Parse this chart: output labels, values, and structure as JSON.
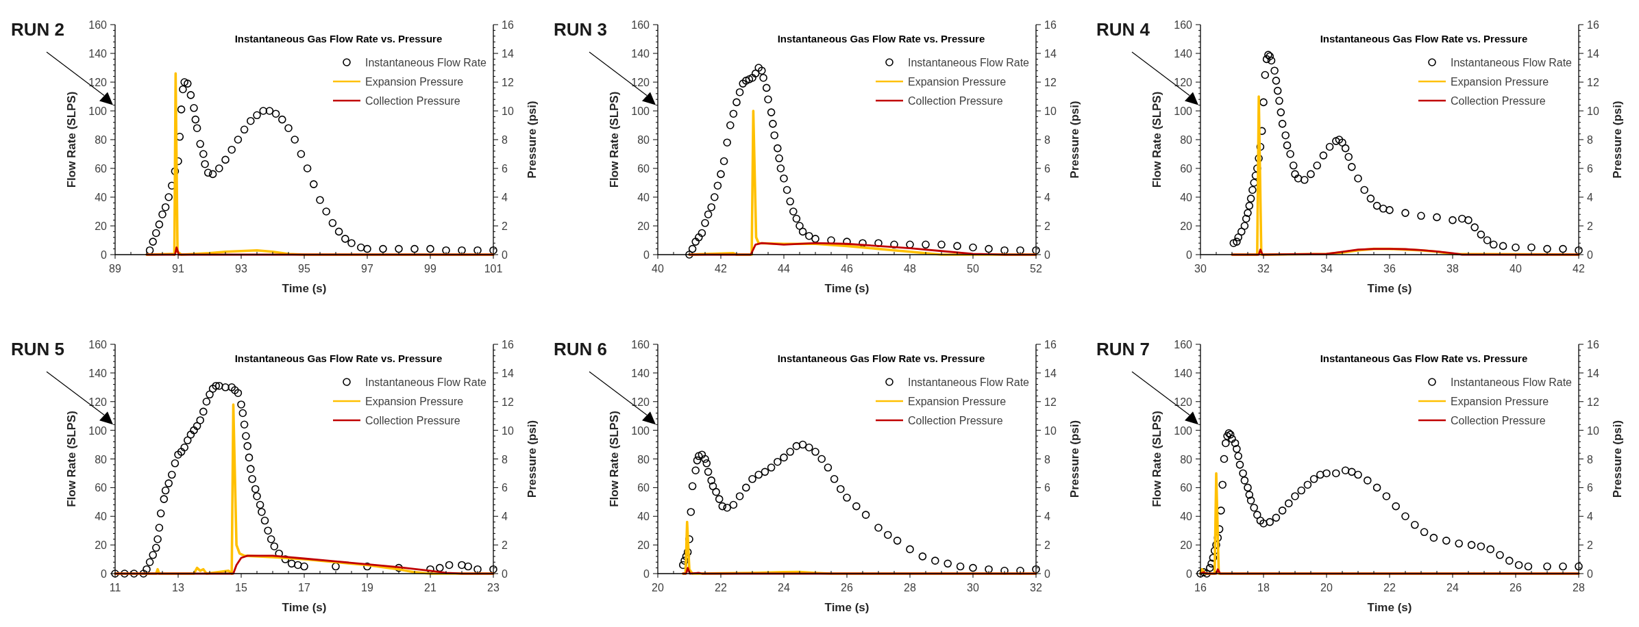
{
  "chart_data": [
    {
      "type": "scatter",
      "title": "Instantaneous Gas Flow Rate vs. Pressure",
      "xlabel": "Time (s)",
      "ylabel": "Flow Rate (SLPS)",
      "y2label": "Pressure (psi)",
      "annotations": [
        "RUN 2"
      ],
      "legend": "top right",
      "xlim": [
        89,
        101
      ],
      "xticks": [
        89,
        91,
        93,
        95,
        97,
        99,
        101
      ],
      "ylim": [
        0,
        160
      ],
      "yticks": [
        0,
        20,
        40,
        60,
        80,
        100,
        120,
        140,
        160
      ],
      "y2lim": [
        0,
        16
      ],
      "y2ticks": [
        0,
        2,
        4,
        6,
        8,
        10,
        12,
        14,
        16
      ],
      "series": [
        {
          "name": "Instantaneous Flow Rate",
          "marker": "circle",
          "color": "#000000",
          "x": [
            90.1,
            90.2,
            90.3,
            90.4,
            90.5,
            90.6,
            90.7,
            90.8,
            90.9,
            91.0,
            91.05,
            91.1,
            91.15,
            91.2,
            91.3,
            91.4,
            91.5,
            91.55,
            91.6,
            91.7,
            91.8,
            91.85,
            91.95,
            92.1,
            92.3,
            92.5,
            92.7,
            92.9,
            93.1,
            93.3,
            93.5,
            93.7,
            93.9,
            94.1,
            94.3,
            94.5,
            94.7,
            94.9,
            95.1,
            95.3,
            95.5,
            95.7,
            95.9,
            96.1,
            96.3,
            96.5,
            96.8,
            97.0,
            97.5,
            98,
            98.5,
            99,
            99.5,
            100,
            100.5,
            101
          ],
          "values": [
            3,
            9,
            15,
            21,
            28,
            33,
            40,
            48,
            58,
            65,
            82,
            101,
            115,
            120,
            119,
            111,
            102,
            94,
            88,
            77,
            70,
            63,
            57,
            56,
            60,
            66,
            73,
            80,
            87,
            93,
            97,
            100,
            100,
            98,
            94,
            88,
            80,
            70,
            60,
            49,
            38,
            30,
            22,
            16,
            11,
            8,
            5,
            4,
            4,
            4,
            4,
            4,
            3,
            3,
            3,
            3
          ]
        },
        {
          "name": "Expansion Pressure",
          "type": "line",
          "axis": "y2",
          "color": "#ffc000",
          "x": [
            90,
            90.8,
            90.88,
            90.92,
            90.98,
            91.1,
            91.5,
            92,
            92.5,
            93,
            93.5,
            94,
            94.5,
            95,
            101
          ],
          "values": [
            0,
            0.05,
            0,
            12.6,
            0.2,
            0,
            0.05,
            0.1,
            0.2,
            0.25,
            0.3,
            0.2,
            0.05,
            0,
            0
          ]
        },
        {
          "name": "Collection Pressure",
          "type": "line",
          "axis": "y2",
          "color": "#c00000",
          "x": [
            90,
            90.9,
            90.95,
            91.02,
            101
          ],
          "values": [
            0,
            0,
            0.5,
            0,
            0
          ]
        }
      ]
    },
    {
      "type": "scatter",
      "title": "Instantaneous Gas Flow Rate vs. Pressure",
      "xlabel": "Time (s)",
      "ylabel": "Flow Rate (SLPS)",
      "y2label": "Pressure (psi)",
      "annotations": [
        "RUN 3"
      ],
      "legend": "top right",
      "xlim": [
        40,
        52
      ],
      "xticks": [
        40,
        42,
        44,
        46,
        48,
        50,
        52
      ],
      "ylim": [
        0,
        160
      ],
      "yticks": [
        0,
        20,
        40,
        60,
        80,
        100,
        120,
        140,
        160
      ],
      "y2lim": [
        0,
        16
      ],
      "y2ticks": [
        0,
        2,
        4,
        6,
        8,
        10,
        12,
        14,
        16
      ],
      "series": [
        {
          "name": "Instantaneous Flow Rate",
          "marker": "circle",
          "color": "#000000",
          "x": [
            41.0,
            41.1,
            41.2,
            41.3,
            41.4,
            41.5,
            41.6,
            41.7,
            41.8,
            41.9,
            42.0,
            42.1,
            42.2,
            42.3,
            42.4,
            42.5,
            42.6,
            42.7,
            42.8,
            42.9,
            43.0,
            43.1,
            43.2,
            43.3,
            43.35,
            43.45,
            43.5,
            43.6,
            43.65,
            43.7,
            43.8,
            43.85,
            43.9,
            44.0,
            44.1,
            44.2,
            44.3,
            44.4,
            44.5,
            44.6,
            44.8,
            45.0,
            45.5,
            46,
            46.5,
            47,
            47.5,
            48,
            48.5,
            49,
            49.5,
            50,
            50.5,
            51,
            51.5,
            52
          ],
          "values": [
            0,
            4,
            9,
            12,
            15,
            22,
            28,
            33,
            40,
            48,
            56,
            65,
            78,
            90,
            98,
            106,
            113,
            119,
            121,
            122,
            123,
            126,
            130,
            128,
            123,
            116,
            108,
            99,
            91,
            83,
            74,
            67,
            60,
            53,
            45,
            37,
            30,
            25,
            20,
            16,
            13,
            11,
            10,
            9,
            8,
            8,
            7,
            7,
            7,
            7,
            6,
            5,
            4,
            3,
            3,
            3
          ]
        },
        {
          "name": "Expansion Pressure",
          "type": "line",
          "axis": "y2",
          "color": "#ffc000",
          "x": [
            41,
            42.4,
            42.5,
            42.98,
            43.03,
            43.12,
            43.2,
            44,
            45,
            46,
            47,
            48,
            49,
            52
          ],
          "values": [
            0,
            0.1,
            0,
            0,
            10.0,
            1.2,
            0.8,
            0.75,
            0.75,
            0.6,
            0.4,
            0.2,
            0,
            0
          ]
        },
        {
          "name": "Collection Pressure",
          "type": "line",
          "axis": "y2",
          "color": "#c00000",
          "x": [
            41,
            42.95,
            43.1,
            43.3,
            44,
            45,
            46,
            47,
            48,
            49,
            50,
            51,
            52
          ],
          "values": [
            0,
            0,
            0.7,
            0.8,
            0.7,
            0.8,
            0.75,
            0.6,
            0.45,
            0.25,
            0.05,
            0,
            0
          ]
        }
      ]
    },
    {
      "type": "scatter",
      "title": "Instantaneous Gas Flow Rate vs. Pressure",
      "xlabel": "Time (s)",
      "ylabel": "Flow Rate (SLPS)",
      "y2label": "Pressure (psi)",
      "annotations": [
        "RUN 4"
      ],
      "legend": "top right",
      "xlim": [
        30,
        42
      ],
      "xticks": [
        30,
        32,
        34,
        36,
        38,
        40,
        42
      ],
      "ylim": [
        0,
        160
      ],
      "yticks": [
        0,
        20,
        40,
        60,
        80,
        100,
        120,
        140,
        160
      ],
      "y2lim": [
        0,
        16
      ],
      "y2ticks": [
        0,
        2,
        4,
        6,
        8,
        10,
        12,
        14,
        16
      ],
      "series": [
        {
          "name": "Instantaneous Flow Rate",
          "marker": "circle",
          "color": "#000000",
          "x": [
            31.05,
            31.15,
            31.2,
            31.3,
            31.4,
            31.45,
            31.5,
            31.55,
            31.6,
            31.65,
            31.7,
            31.75,
            31.8,
            31.85,
            31.9,
            31.95,
            32.0,
            32.05,
            32.1,
            32.15,
            32.2,
            32.25,
            32.35,
            32.4,
            32.45,
            32.5,
            32.55,
            32.6,
            32.7,
            32.75,
            32.85,
            32.95,
            33.0,
            33.1,
            33.3,
            33.5,
            33.7,
            33.9,
            34.1,
            34.3,
            34.4,
            34.5,
            34.6,
            34.7,
            34.8,
            35.0,
            35.2,
            35.4,
            35.6,
            35.8,
            36.0,
            36.5,
            37,
            37.5,
            38,
            38.3,
            38.5,
            38.7,
            38.9,
            39.1,
            39.3,
            39.6,
            40,
            40.5,
            41,
            41.5,
            42
          ],
          "values": [
            8,
            9,
            12,
            16,
            20,
            25,
            29,
            34,
            39,
            45,
            50,
            55,
            60,
            67,
            75,
            86,
            106,
            125,
            136,
            139,
            138,
            135,
            128,
            121,
            114,
            107,
            99,
            91,
            83,
            76,
            70,
            62,
            56,
            53,
            52,
            56,
            62,
            69,
            75,
            79,
            80,
            78,
            74,
            68,
            61,
            53,
            45,
            39,
            34,
            32,
            31,
            29,
            27,
            26,
            24,
            25,
            24,
            19,
            14,
            10,
            7,
            6,
            5,
            5,
            4,
            4,
            3
          ]
        },
        {
          "name": "Expansion Pressure",
          "type": "line",
          "axis": "y2",
          "color": "#ffc000",
          "x": [
            31,
            31.8,
            31.85,
            31.93,
            32.1,
            34,
            34.5,
            35,
            35.5,
            36,
            36.5,
            37,
            37.5,
            38,
            42
          ],
          "values": [
            0,
            0,
            11,
            0,
            0,
            0.05,
            0.15,
            0.3,
            0.4,
            0.4,
            0.35,
            0.3,
            0.2,
            0.05,
            0
          ]
        },
        {
          "name": "Collection Pressure",
          "type": "line",
          "axis": "y2",
          "color": "#c00000",
          "x": [
            31,
            31.85,
            31.9,
            31.97,
            34,
            34.5,
            35,
            35.5,
            36,
            36.5,
            37,
            37.5,
            38,
            38.3,
            42
          ],
          "values": [
            0,
            0,
            0.35,
            0,
            0.05,
            0.2,
            0.35,
            0.4,
            0.4,
            0.38,
            0.32,
            0.22,
            0.1,
            0,
            0
          ]
        }
      ]
    },
    {
      "type": "scatter",
      "title": "Instantaneous Gas Flow Rate vs. Pressure",
      "xlabel": "Time (s)",
      "ylabel": "Flow Rate (SLPS)",
      "y2label": "Pressure (psi)",
      "annotations": [
        "RUN 5"
      ],
      "legend": "top right",
      "xlim": [
        11,
        23
      ],
      "xticks": [
        11,
        13,
        15,
        17,
        19,
        21,
        23
      ],
      "ylim": [
        0,
        160
      ],
      "yticks": [
        0,
        20,
        40,
        60,
        80,
        100,
        120,
        140,
        160
      ],
      "y2lim": [
        0,
        16
      ],
      "y2ticks": [
        0,
        2,
        4,
        6,
        8,
        10,
        12,
        14,
        16
      ],
      "series": [
        {
          "name": "Instantaneous Flow Rate",
          "marker": "circle",
          "color": "#000000",
          "x": [
            11,
            11.3,
            11.6,
            11.9,
            12.0,
            12.1,
            12.2,
            12.3,
            12.35,
            12.4,
            12.45,
            12.55,
            12.6,
            12.7,
            12.8,
            12.9,
            13.0,
            13.1,
            13.2,
            13.3,
            13.4,
            13.5,
            13.6,
            13.7,
            13.8,
            13.9,
            14.0,
            14.1,
            14.2,
            14.3,
            14.5,
            14.7,
            14.8,
            14.9,
            15.0,
            15.05,
            15.1,
            15.15,
            15.2,
            15.25,
            15.3,
            15.35,
            15.45,
            15.5,
            15.6,
            15.65,
            15.75,
            15.85,
            15.95,
            16.05,
            16.2,
            16.4,
            16.6,
            16.8,
            17,
            18,
            19,
            20,
            21,
            21.3,
            21.6,
            22,
            22.2,
            22.5,
            23
          ],
          "values": [
            0,
            0,
            0,
            0,
            3,
            8,
            13,
            18,
            24,
            32,
            42,
            52,
            58,
            63,
            69,
            77,
            83,
            85,
            88,
            93,
            97,
            100,
            103,
            107,
            113,
            120,
            125,
            129,
            131,
            131,
            130,
            130,
            128,
            126,
            118,
            112,
            104,
            96,
            89,
            81,
            73,
            66,
            59,
            54,
            48,
            43,
            37,
            30,
            24,
            19,
            14,
            10,
            7,
            6,
            5,
            5,
            5,
            4,
            3,
            4,
            6,
            6,
            5,
            3,
            3
          ]
        },
        {
          "name": "Expansion Pressure",
          "type": "line",
          "axis": "y2",
          "color": "#ffc000",
          "x": [
            11,
            12.3,
            12.35,
            12.4,
            13.5,
            13.6,
            13.7,
            13.8,
            13.9,
            14.6,
            14.7,
            14.75,
            14.85,
            14.95,
            15.1,
            16,
            17,
            18,
            19,
            20,
            20.5,
            21,
            23
          ],
          "values": [
            0,
            0,
            0.3,
            0,
            0,
            0.4,
            0.2,
            0.3,
            0,
            0.2,
            0,
            11.8,
            2,
            1.4,
            1.25,
            1.15,
            1.0,
            0.8,
            0.6,
            0.3,
            0.1,
            0,
            0
          ]
        },
        {
          "name": "Collection Pressure",
          "type": "line",
          "axis": "y2",
          "color": "#c00000",
          "x": [
            11,
            14.75,
            14.85,
            15.0,
            15.2,
            16,
            17,
            18,
            19,
            20,
            21,
            21.5,
            22,
            23
          ],
          "values": [
            0,
            0,
            0.6,
            1.1,
            1.25,
            1.25,
            1.05,
            0.85,
            0.65,
            0.45,
            0.2,
            0.05,
            0,
            0
          ]
        }
      ]
    },
    {
      "type": "scatter",
      "title": "Instantaneous Gas Flow Rate vs. Pressure",
      "xlabel": "Time (s)",
      "ylabel": "Flow Rate (SLPS)",
      "y2label": "Pressure (psi)",
      "annotations": [
        "RUN 6"
      ],
      "legend": "top right",
      "xlim": [
        20,
        32
      ],
      "xticks": [
        20,
        22,
        24,
        26,
        28,
        30,
        32
      ],
      "ylim": [
        0,
        160
      ],
      "yticks": [
        0,
        20,
        40,
        60,
        80,
        100,
        120,
        140,
        160
      ],
      "y2lim": [
        0,
        16
      ],
      "y2ticks": [
        0,
        2,
        4,
        6,
        8,
        10,
        12,
        14,
        16
      ],
      "series": [
        {
          "name": "Instantaneous Flow Rate",
          "marker": "circle",
          "color": "#000000",
          "x": [
            20.8,
            20.85,
            20.9,
            20.95,
            21.0,
            21.05,
            21.1,
            21.2,
            21.25,
            21.3,
            21.4,
            21.5,
            21.55,
            21.6,
            21.7,
            21.75,
            21.85,
            21.95,
            22.05,
            22.2,
            22.4,
            22.6,
            22.8,
            23.0,
            23.2,
            23.4,
            23.6,
            23.8,
            24.0,
            24.2,
            24.4,
            24.6,
            24.8,
            25.0,
            25.2,
            25.4,
            25.6,
            25.8,
            26.0,
            26.3,
            26.6,
            27.0,
            27.3,
            27.6,
            28.0,
            28.4,
            28.8,
            29.2,
            29.6,
            30,
            30.5,
            31,
            31.5,
            32
          ],
          "values": [
            6,
            9,
            12,
            15,
            24,
            43,
            61,
            72,
            79,
            82,
            83,
            80,
            77,
            71,
            65,
            61,
            57,
            52,
            47,
            46,
            48,
            54,
            60,
            66,
            69,
            71,
            74,
            78,
            81,
            85,
            89,
            90,
            88,
            85,
            80,
            74,
            66,
            59,
            53,
            47,
            41,
            32,
            27,
            23,
            17,
            12,
            9,
            7,
            5,
            4,
            3,
            2,
            2,
            3
          ]
        },
        {
          "name": "Expansion Pressure",
          "type": "line",
          "axis": "y2",
          "color": "#ffc000",
          "x": [
            20.8,
            20.88,
            20.93,
            21.0,
            21.1,
            22,
            23,
            24,
            24.5,
            25,
            25.5,
            32
          ],
          "values": [
            0,
            0,
            3.6,
            0.3,
            0,
            0.02,
            0.05,
            0.1,
            0.12,
            0.05,
            0,
            0
          ]
        },
        {
          "name": "Collection Pressure",
          "type": "line",
          "axis": "y2",
          "color": "#c00000",
          "x": [
            20.8,
            20.9,
            20.95,
            21.02,
            21.3,
            21.4,
            32
          ],
          "values": [
            0,
            0,
            0.4,
            0,
            0.05,
            0,
            0
          ]
        }
      ]
    },
    {
      "type": "scatter",
      "title": "Instantaneous Gas Flow Rate vs. Pressure",
      "xlabel": "Time (s)",
      "ylabel": "Flow Rate (SLPS)",
      "y2label": "Pressure (psi)",
      "annotations": [
        "RUN 7"
      ],
      "legend": "top right",
      "xlim": [
        16,
        28
      ],
      "xticks": [
        16,
        18,
        20,
        22,
        24,
        26,
        28
      ],
      "ylim": [
        0,
        160
      ],
      "yticks": [
        0,
        20,
        40,
        60,
        80,
        100,
        120,
        140,
        160
      ],
      "y2lim": [
        0,
        16
      ],
      "y2ticks": [
        0,
        2,
        4,
        6,
        8,
        10,
        12,
        14,
        16
      ],
      "series": [
        {
          "name": "Instantaneous Flow Rate",
          "marker": "circle",
          "color": "#000000",
          "x": [
            16.0,
            16.1,
            16.2,
            16.3,
            16.35,
            16.4,
            16.45,
            16.5,
            16.55,
            16.6,
            16.65,
            16.7,
            16.75,
            16.8,
            16.85,
            16.9,
            16.95,
            17.0,
            17.1,
            17.15,
            17.2,
            17.25,
            17.35,
            17.4,
            17.5,
            17.55,
            17.6,
            17.7,
            17.8,
            17.9,
            18.0,
            18.2,
            18.4,
            18.6,
            18.8,
            19.0,
            19.2,
            19.4,
            19.6,
            19.8,
            20.0,
            20.3,
            20.6,
            20.8,
            21.0,
            21.3,
            21.6,
            21.9,
            22.2,
            22.5,
            22.8,
            23.1,
            23.4,
            23.8,
            24.2,
            24.6,
            24.9,
            25.2,
            25.5,
            25.8,
            26.1,
            26.4,
            27,
            27.5,
            28
          ],
          "values": [
            0,
            1,
            0,
            4,
            7,
            11,
            16,
            20,
            25,
            31,
            44,
            62,
            80,
            91,
            96,
            98,
            97,
            94,
            91,
            87,
            82,
            76,
            70,
            65,
            60,
            55,
            51,
            46,
            41,
            37,
            35,
            36,
            39,
            44,
            49,
            54,
            58,
            62,
            66,
            69,
            70,
            70,
            72,
            71,
            69,
            65,
            60,
            54,
            47,
            40,
            34,
            29,
            25,
            23,
            21,
            20,
            19,
            17,
            13,
            9,
            6,
            5,
            5,
            5,
            5
          ]
        },
        {
          "name": "Expansion Pressure",
          "type": "line",
          "axis": "y2",
          "color": "#ffc000",
          "x": [
            16,
            16.05,
            16.15,
            16.45,
            16.5,
            16.58,
            28
          ],
          "values": [
            0,
            0.3,
            0,
            0,
            7.0,
            0,
            0
          ]
        },
        {
          "name": "Collection Pressure",
          "type": "line",
          "axis": "y2",
          "color": "#c00000",
          "x": [
            16,
            16.1,
            16.2,
            16.5,
            16.55,
            16.62,
            28
          ],
          "values": [
            0,
            0.1,
            0,
            0,
            0.3,
            0,
            0
          ]
        }
      ]
    }
  ]
}
